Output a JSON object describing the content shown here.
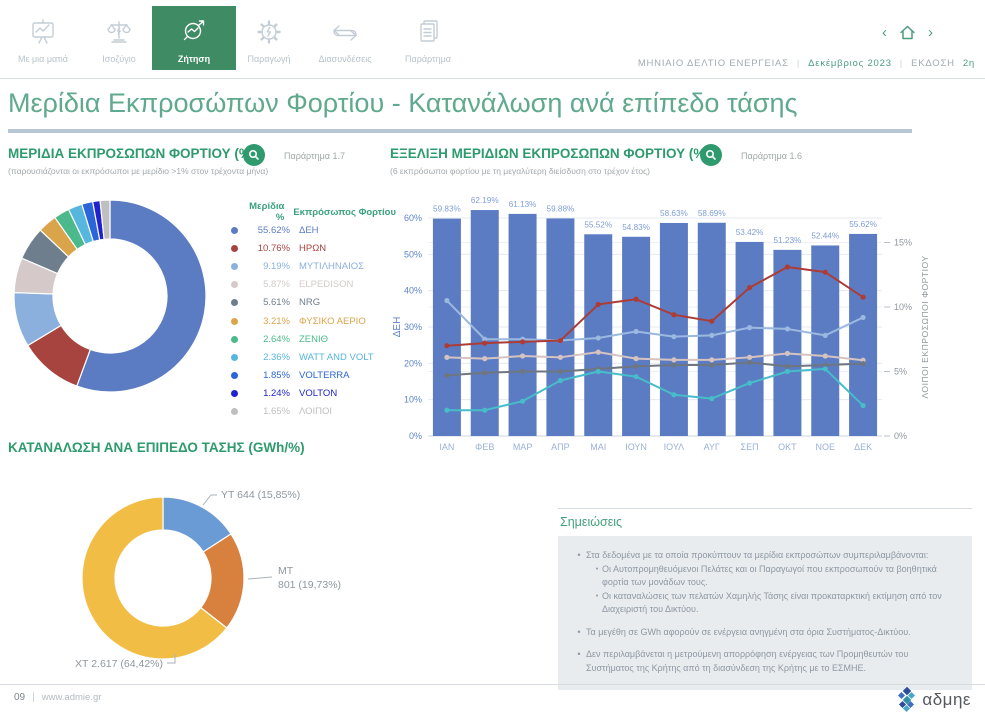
{
  "colors": {
    "accent_green": "#2e9b6e",
    "title_green": "#5fa98e",
    "active_tab_green": "#3e8b64",
    "bar_blue": "#5b7cc3",
    "axis_blue": "#5d85c8",
    "month_label_blue": "#9ab1d8",
    "bar_label_blue": "#7f9ed8",
    "right_axis_gray": "#8f979e",
    "grid": "#e4e9f0"
  },
  "nav": {
    "tabs": [
      {
        "label": "Με μια ματιά",
        "icon": "presentation-chart",
        "active": false
      },
      {
        "label": "Ισοζύγιο",
        "icon": "balance-scales",
        "active": false
      },
      {
        "label": "Ζήτηση",
        "icon": "magnifier-chart",
        "active": true
      },
      {
        "label": "Παραγωγή",
        "icon": "gear-bolt",
        "active": false
      },
      {
        "label": "Διασυνδέσεις",
        "icon": "swap-arrows",
        "active": false
      },
      {
        "label": "Παράρτημα",
        "icon": "document-pages",
        "active": false
      }
    ],
    "pager": {
      "prev": "‹",
      "next": "›"
    },
    "bulletin": {
      "title": "ΜΗΝΙΑΙΟ ΔΕΛΤΙΟ  ΕΝΕΡΓΕΙΑΣ",
      "sep1": "|",
      "date": "Δεκέμβριος 2023",
      "sep2": "|",
      "edition_label": "ΕΚΔΟΣΗ",
      "edition_value": "2η"
    }
  },
  "page_title": "Μερίδια Εκπροσώπων Φορτίου - Κατανάλωση ανά επίπεδο τάσης",
  "shares_section": {
    "title": "ΜΕΡΙΔΙΑ ΕΚΠΡΟΣΩΠΩΝ ΦΟΡΤΙΟΥ (%)",
    "appendix": "Παράρτημα 1.7",
    "subtitle": "(παρουσιάζονται οι εκπρόσωποι με μερίδιο >1% στον τρέχοντα μήνα)",
    "legend_headers": {
      "share": "Μερίδια %",
      "representative": "Εκπρόσωπος Φορτίου"
    }
  },
  "evolution_section": {
    "title": "ΕΞΕΛΙΞΗ ΜΕΡΙΔΙΩΝ ΕΚΠΡΟΣΩΠΩΝ ΦΟΡΤΙΟΥ (%)",
    "appendix": "Παράρτημα 1.6",
    "subtitle": "(6 εκπρόσωποι φορτίου με τη μεγαλύτερη διείσδυση στο τρέχον έτος)"
  },
  "voltage_section": {
    "title": "ΚΑΤΑΝΑΛΩΣΗ ΑΝΑ ΕΠΙΠΕΔΟ ΤΑΣΗΣ (GWh/%)"
  },
  "chart_data": [
    {
      "type": "pie",
      "title": "ΜΕΡΙΔΙΑ ΕΚΠΡΟΣΩΠΩΝ ΦΟΡΤΙΟΥ (%)",
      "labels": [
        "ΔΕΗ",
        "ΗΡΩΝ",
        "ΜΥΤΙΛΗΝΑΙΟΣ",
        "ELPEDISON",
        "NRG",
        "ΦΥΣΙΚΟ ΑΕΡΙΟ",
        "ΖΕΝΙΘ",
        "WATT AND VOLT",
        "VOLTERRA",
        "VOLTON",
        "ΛΟΙΠΟΙ"
      ],
      "values": [
        55.62,
        10.76,
        9.19,
        5.87,
        5.61,
        3.21,
        2.64,
        2.36,
        1.85,
        1.24,
        1.65
      ],
      "display_values": [
        "55.62%",
        "10.76%",
        "9.19%",
        "5.87%",
        "5.61%",
        "3.21%",
        "2.64%",
        "2.36%",
        "1.85%",
        "1.24%",
        "1.65%"
      ],
      "colors": [
        "#5b7cc3",
        "#a84440",
        "#8cb0de",
        "#d5c9c9",
        "#6e7e8d",
        "#daa44b",
        "#4bb98b",
        "#57b6de",
        "#2c64da",
        "#2023cd",
        "#bfbfbf"
      ],
      "donut": true,
      "start_angle_deg": 0,
      "legend_position": "right"
    },
    {
      "type": "bar",
      "title": "ΕΞΕΛΙΞΗ ΜΕΡΙΔΙΩΝ ΕΚΠΡΟΣΩΠΩΝ ΦΟΡΤΙΟΥ (%)",
      "categories": [
        "ΙΑΝ",
        "ΦΕΒ",
        "ΜΑΡ",
        "ΑΠΡ",
        "ΜΑΙ",
        "ΙΟΥΝ",
        "ΙΟΥΛ",
        "ΑΥΓ",
        "ΣΕΠ",
        "ΟΚΤ",
        "ΝΟΕ",
        "ΔΕΚ"
      ],
      "bar_series": {
        "name": "ΔΕΗ",
        "axis": "left",
        "color": "#5b7cc3",
        "values": [
          59.83,
          62.19,
          61.13,
          59.88,
          55.52,
          54.83,
          58.63,
          58.69,
          53.42,
          51.23,
          52.44,
          55.62
        ],
        "labels": [
          "59.83%",
          "62.19%",
          "61.13%",
          "59.88%",
          "55.52%",
          "54.83%",
          "58.63%",
          "58.69%",
          "53.42%",
          "51.23%",
          "52.44%",
          "55.62%"
        ]
      },
      "line_series": [
        {
          "name": "ΜΥΤΙΛΗΝΑΙΟΣ",
          "axis": "right",
          "color": "#9bb9e0",
          "values": [
            10.5,
            7.5,
            7.5,
            7.4,
            7.6,
            8.1,
            7.7,
            7.8,
            8.4,
            8.3,
            7.8,
            9.19
          ]
        },
        {
          "name": "ELPEDISON",
          "axis": "right",
          "color": "#d6c3c1",
          "values": [
            6.1,
            6.0,
            6.2,
            6.1,
            6.5,
            6.0,
            5.9,
            5.9,
            6.1,
            6.4,
            6.2,
            5.87
          ]
        },
        {
          "name": "NRG",
          "axis": "right",
          "color": "#6e7781",
          "values": [
            4.7,
            4.9,
            5.0,
            5.0,
            5.2,
            5.4,
            5.5,
            5.5,
            5.7,
            5.4,
            5.5,
            5.61
          ]
        },
        {
          "name": "WATT AND VOLT",
          "axis": "right",
          "color": "#46bdc9",
          "values": [
            2.0,
            2.0,
            2.7,
            4.3,
            5.0,
            4.6,
            3.2,
            2.9,
            4.1,
            5.0,
            5.2,
            2.36
          ]
        },
        {
          "name": "ΗΡΩΝ",
          "axis": "right",
          "color": "#ac3c36",
          "values": [
            7.0,
            7.2,
            7.3,
            7.4,
            10.2,
            10.6,
            9.4,
            8.9,
            11.5,
            13.1,
            12.7,
            10.76
          ]
        }
      ],
      "left_axis": {
        "label": "ΔΕΗ",
        "min": 0,
        "max": 60,
        "ticks": [
          "0%",
          "10%",
          "20%",
          "30%",
          "40%",
          "50%",
          "60%"
        ]
      },
      "right_axis": {
        "label": "ΛΟΙΠΟΙ ΕΚΠΡΟΣΩΠΟΙ ΦΟΡΤΙΟΥ",
        "min": 0,
        "max": 16.9,
        "ticks": [
          "0%",
          "5%",
          "10%",
          "15%"
        ]
      },
      "grid": true
    },
    {
      "type": "pie",
      "title": "ΚΑΤΑΝΑΛΩΣΗ ΑΝΑ ΕΠΙΠΕΔΟ ΤΑΣΗΣ (GWh/%)",
      "labels": [
        "ΥΤ",
        "ΜΤ",
        "ΧΤ"
      ],
      "values": [
        15.85,
        19.73,
        64.42
      ],
      "values_gwh": [
        644,
        801,
        2617
      ],
      "colors": [
        "#6b9bd5",
        "#d8813e",
        "#f2bd45"
      ],
      "donut": true,
      "start_angle_deg": 0,
      "callouts": {
        "yt": "ΥΤ 644 (15,85%)",
        "mt_line1": "ΜΤ",
        "mt_line2": "801 (19,73%)",
        "xt": "ΧΤ 2.617 (64,42%)"
      }
    }
  ],
  "notes": {
    "title": "Σημειώσεις",
    "items": [
      {
        "text": "Στα δεδομένα με τα οποία προκύπτουν τα μερίδια εκπροσώπων συμπεριλαμβάνονται:",
        "subitems": [
          "Οι Αυτοπρομηθευόμενοι Πελάτες και οι Παραγωγοί που εκπροσωπούν τα βοηθητικά φορτία των μονάδων τους.",
          "Οι καταναλώσεις των πελατών Χαμηλής Τάσης είναι προκαταρκτική εκτίμηση από τον Διαχειριστή του Δικτύου."
        ]
      },
      {
        "text": "Τα μεγέθη σε GWh αφορούν σε ενέργεια ανηγμένη στα όρια Συστήματος-Δικτύου.",
        "subitems": []
      },
      {
        "text": "Δεν περιλαμβάνεται η μετρούμενη απορρόφηση ενέργειας των Προμηθευτών του Συστήματος της Κρήτης από τη διασύνδεση της Κρήτης με το ΕΣΜΗΕ.",
        "subitems": []
      }
    ]
  },
  "footer": {
    "page": "09",
    "sep": "|",
    "site": "www.admie.gr",
    "logo_text": "αδμηε"
  }
}
